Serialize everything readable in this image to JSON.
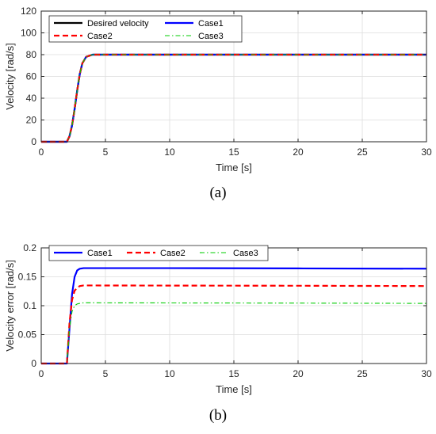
{
  "chart_data": [
    {
      "type": "line",
      "caption": "(a)",
      "xlabel": "Time [s]",
      "ylabel": "Velocity [rad/s]",
      "xlim": [
        0,
        30
      ],
      "ylim": [
        0,
        120
      ],
      "xticks": [
        0,
        5,
        10,
        15,
        20,
        25,
        30
      ],
      "yticks": [
        0,
        20,
        40,
        60,
        80,
        100,
        120
      ],
      "grid": true,
      "legend_position": "top-left",
      "legend_columns": 2,
      "series": [
        {
          "name": "Desired velocity",
          "color": "#000000",
          "style": "solid",
          "x": [
            0,
            2,
            2.2,
            2.4,
            2.6,
            2.8,
            3.0,
            3.2,
            3.5,
            4.0,
            5,
            10,
            15,
            20,
            25,
            30
          ],
          "y": [
            0,
            0,
            5,
            15,
            30,
            47,
            62,
            72,
            78,
            80,
            80,
            80,
            80,
            80,
            80,
            80
          ]
        },
        {
          "name": "Case1",
          "color": "#0000ff",
          "style": "solid",
          "x": [
            0,
            2,
            2.2,
            2.4,
            2.6,
            2.8,
            3.0,
            3.2,
            3.5,
            4.0,
            5,
            10,
            15,
            20,
            25,
            30
          ],
          "y": [
            0,
            0,
            5,
            15,
            30,
            47,
            62,
            72,
            78,
            80,
            80,
            80,
            80,
            80,
            80,
            80
          ]
        },
        {
          "name": "Case2",
          "color": "#ff0000",
          "style": "dashed",
          "x": [
            0,
            2,
            2.2,
            2.4,
            2.6,
            2.8,
            3.0,
            3.2,
            3.5,
            4.0,
            5,
            10,
            15,
            20,
            25,
            30
          ],
          "y": [
            0,
            0,
            5,
            15,
            30,
            47,
            62,
            72,
            78,
            80,
            80,
            80,
            80,
            80,
            80,
            80
          ]
        },
        {
          "name": "Case3",
          "color": "#00cc00",
          "style": "dashdot",
          "x": [
            0,
            2,
            2.2,
            2.4,
            2.6,
            2.8,
            3.0,
            3.2,
            3.5,
            4.0,
            5,
            10,
            15,
            20,
            25,
            30
          ],
          "y": [
            0,
            0,
            5,
            15,
            30,
            47,
            62,
            72,
            78,
            80,
            80,
            80,
            80,
            80,
            80,
            80
          ]
        }
      ]
    },
    {
      "type": "line",
      "caption": "(b)",
      "xlabel": "Time [s]",
      "ylabel": "Velocity error [rad/s]",
      "xlim": [
        0,
        30
      ],
      "ylim": [
        0,
        0.2
      ],
      "xticks": [
        0,
        5,
        10,
        15,
        20,
        25,
        30
      ],
      "yticks": [
        0,
        0.05,
        0.1,
        0.15,
        0.2
      ],
      "ytick_labels": [
        "0",
        "0.05",
        "0.1",
        "0.15",
        "0.2"
      ],
      "grid": true,
      "legend_position": "top-left",
      "legend_columns": 3,
      "series": [
        {
          "name": "Case1",
          "color": "#0000ff",
          "style": "solid",
          "x": [
            0,
            2,
            2.2,
            2.4,
            2.6,
            2.8,
            3.0,
            3.3,
            4.0,
            10,
            20,
            30
          ],
          "y": [
            0,
            0,
            0.06,
            0.12,
            0.15,
            0.161,
            0.164,
            0.165,
            0.165,
            0.165,
            0.1645,
            0.164
          ]
        },
        {
          "name": "Case2",
          "color": "#ff0000",
          "style": "dashed",
          "x": [
            0,
            2,
            2.2,
            2.4,
            2.6,
            2.8,
            3.0,
            3.3,
            4.0,
            10,
            20,
            30
          ],
          "y": [
            0,
            0,
            0.07,
            0.11,
            0.126,
            0.131,
            0.134,
            0.135,
            0.135,
            0.1348,
            0.1345,
            0.134
          ]
        },
        {
          "name": "Case3",
          "color": "#00cc00",
          "style": "dashdot",
          "x": [
            0,
            2,
            2.2,
            2.4,
            2.6,
            2.8,
            3.0,
            3.3,
            4.0,
            10,
            20,
            30
          ],
          "y": [
            0,
            0,
            0.06,
            0.09,
            0.1,
            0.103,
            0.104,
            0.105,
            0.105,
            0.1048,
            0.1045,
            0.104
          ]
        }
      ]
    }
  ]
}
